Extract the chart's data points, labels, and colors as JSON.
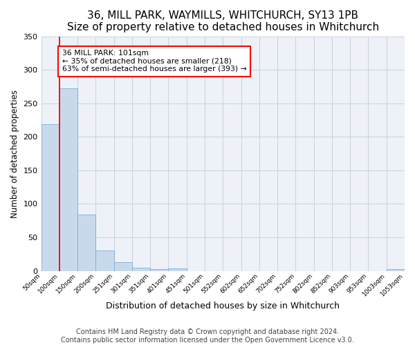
{
  "title": "36, MILL PARK, WAYMILLS, WHITCHURCH, SY13 1PB",
  "subtitle": "Size of property relative to detached houses in Whitchurch",
  "xlabel": "Distribution of detached houses by size in Whitchurch",
  "ylabel": "Number of detached properties",
  "bar_values": [
    219,
    272,
    84,
    30,
    13,
    5,
    3,
    4,
    0,
    0,
    0,
    0,
    0,
    0,
    0,
    0,
    0,
    0,
    0,
    3
  ],
  "bar_edge_labels": [
    "50sqm",
    "100sqm",
    "150sqm",
    "200sqm",
    "251sqm",
    "301sqm",
    "351sqm",
    "401sqm",
    "451sqm",
    "501sqm",
    "552sqm",
    "602sqm",
    "652sqm",
    "702sqm",
    "752sqm",
    "802sqm",
    "852sqm",
    "903sqm",
    "953sqm",
    "1003sqm",
    "1053sqm"
  ],
  "bar_color": "#c9d9ec",
  "bar_edge_color": "#7aadd4",
  "grid_color": "#c8d4e3",
  "background_color": "#eef2f8",
  "annotation_box_text": "36 MILL PARK: 101sqm\n← 35% of detached houses are smaller (218)\n63% of semi-detached houses are larger (393) →",
  "annotation_box_color": "white",
  "annotation_box_edge_color": "red",
  "red_line_x": 1,
  "ylim": [
    0,
    350
  ],
  "yticks": [
    0,
    50,
    100,
    150,
    200,
    250,
    300,
    350
  ],
  "footer_line1": "Contains HM Land Registry data © Crown copyright and database right 2024.",
  "footer_line2": "Contains public sector information licensed under the Open Government Licence v3.0.",
  "title_fontsize": 11,
  "xlabel_fontsize": 9,
  "ylabel_fontsize": 8.5,
  "footer_fontsize": 7
}
